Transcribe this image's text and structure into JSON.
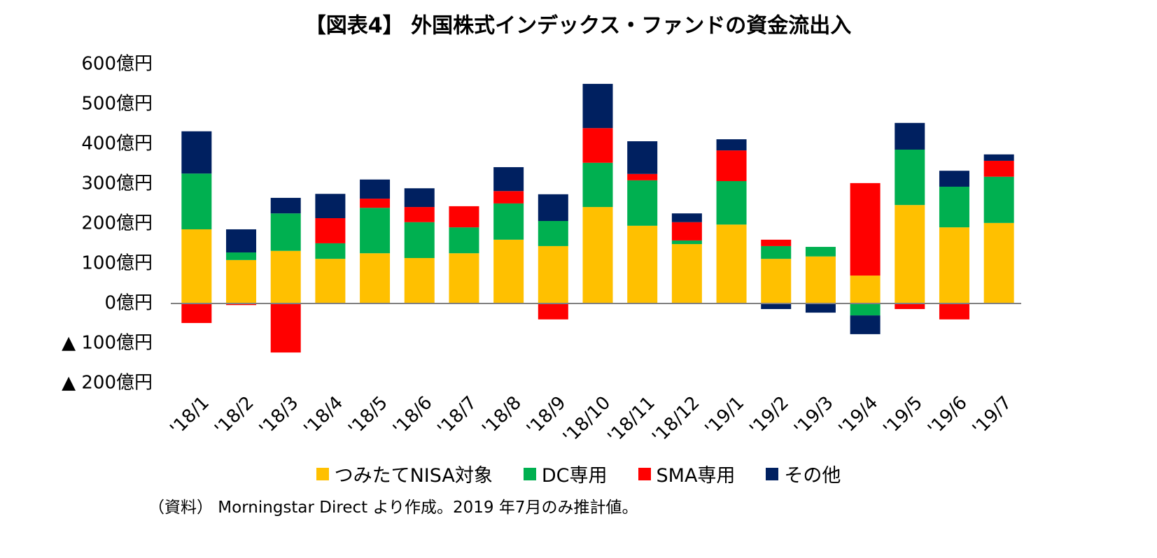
{
  "chart_data": {
    "type": "stacked-bar",
    "title": "【図表4】 外国株式インデックス・ファンドの資金流出入",
    "categories": [
      "'18/1",
      "'18/2",
      "'18/3",
      "'18/4",
      "'18/5",
      "'18/6",
      "'18/7",
      "'18/8",
      "'18/9",
      "'18/10",
      "'18/11",
      "'18/12",
      "'19/1",
      "'19/2",
      "'19/3",
      "'19/4",
      "'19/5",
      "'19/6",
      "'19/7"
    ],
    "series": [
      {
        "name": "つみたてNISA対象",
        "color": "#ffc000",
        "values": [
          186,
          109,
          132,
          112,
          126,
          114,
          126,
          160,
          144,
          242,
          195,
          149,
          198,
          112,
          118,
          70,
          247,
          191,
          202
        ]
      },
      {
        "name": "DC専用",
        "color": "#00b050",
        "values": [
          140,
          19,
          94,
          39,
          114,
          90,
          65,
          91,
          63,
          111,
          114,
          9,
          109,
          32,
          24,
          -30,
          139,
          102,
          116
        ]
      },
      {
        "name": "SMA専用",
        "color": "#ff0000",
        "values": [
          -49,
          -4,
          -123,
          63,
          23,
          38,
          53,
          31,
          -40,
          87,
          16,
          46,
          77,
          16,
          0,
          232,
          -14,
          -40,
          40
        ]
      },
      {
        "name": "その他",
        "color": "#002060",
        "values": [
          106,
          58,
          39,
          61,
          48,
          47,
          0,
          60,
          67,
          111,
          82,
          22,
          28,
          -14,
          -23,
          -47,
          67,
          40,
          16
        ]
      }
    ],
    "ylim": [
      -200,
      600
    ],
    "yticks": [
      {
        "value": 600,
        "label": "600億円"
      },
      {
        "value": 500,
        "label": "500億円"
      },
      {
        "value": 400,
        "label": "400億円"
      },
      {
        "value": 300,
        "label": "300億円"
      },
      {
        "value": 200,
        "label": "200億円"
      },
      {
        "value": 100,
        "label": "100億円"
      },
      {
        "value": 0,
        "label": "0億円"
      },
      {
        "value": -100,
        "label": "▲ 100億円"
      },
      {
        "value": -200,
        "label": "▲ 200億円"
      }
    ],
    "grid": false,
    "note": "（資料） Morningstar Direct より作成。2019 年7月のみ推計値。"
  }
}
